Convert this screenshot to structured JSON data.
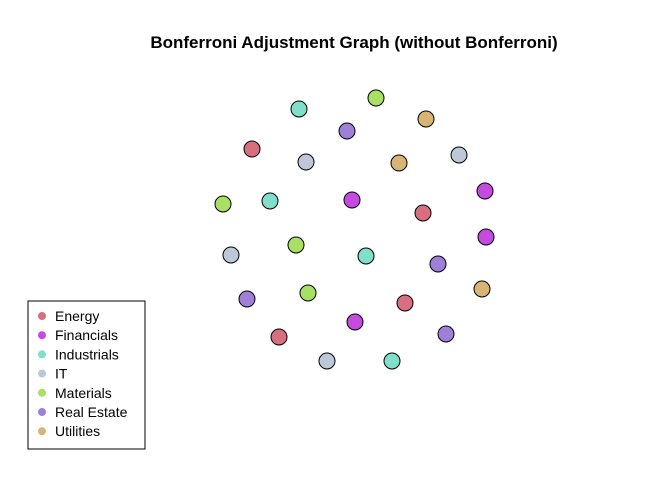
{
  "title": "Bonferroni Adjustment Graph (without Bonferroni)",
  "groups": [
    {
      "name": "Energy",
      "color": "#d76f80"
    },
    {
      "name": "Financials",
      "color": "#c54be0"
    },
    {
      "name": "Industrials",
      "color": "#7fdfc8"
    },
    {
      "name": "IT",
      "color": "#bcc8d8"
    },
    {
      "name": "Materials",
      "color": "#a8e063"
    },
    {
      "name": "Real Estate",
      "color": "#9f7fd8"
    },
    {
      "name": "Utilities",
      "color": "#d8b574"
    }
  ],
  "node_groups": [
    "Industrials",
    "Materials",
    "Utilities",
    "Real Estate",
    "Energy",
    "IT",
    "Utilities",
    "IT",
    "Financials",
    "Materials",
    "Industrials",
    "Financials",
    "Energy",
    "Financials",
    "IT",
    "Materials",
    "Industrials",
    "Real Estate",
    "Utilities",
    "Real Estate",
    "Materials",
    "Energy",
    "Financials",
    "Energy",
    "Real Estate",
    "IT",
    "Industrials"
  ]
}
